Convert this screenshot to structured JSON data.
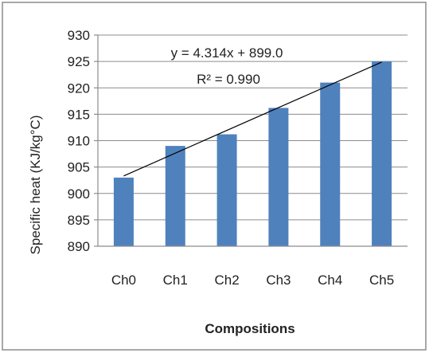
{
  "chart_data": {
    "type": "bar",
    "categories": [
      "Ch0",
      "Ch1",
      "Ch2",
      "Ch3",
      "Ch4",
      "Ch5"
    ],
    "values": [
      903,
      909,
      911.2,
      916.2,
      921,
      925
    ],
    "xlabel": "Compositions",
    "ylabel": "Specific heat (KJ/kg°C)",
    "ylim": [
      890,
      930
    ],
    "yticks": [
      "890",
      "895",
      "900",
      "905",
      "910",
      "915",
      "920",
      "925",
      "930"
    ],
    "grid": true,
    "trendline": {
      "slope": 4.314,
      "intercept": 899.0,
      "equation": "y = 4.314x + 899.0",
      "r_squared": "R² = 0.990"
    },
    "colors": {
      "bar": "#4f81bd",
      "grid": "#8c8c8c",
      "trendline": "#000000",
      "frame": "#8c8c8c"
    }
  }
}
